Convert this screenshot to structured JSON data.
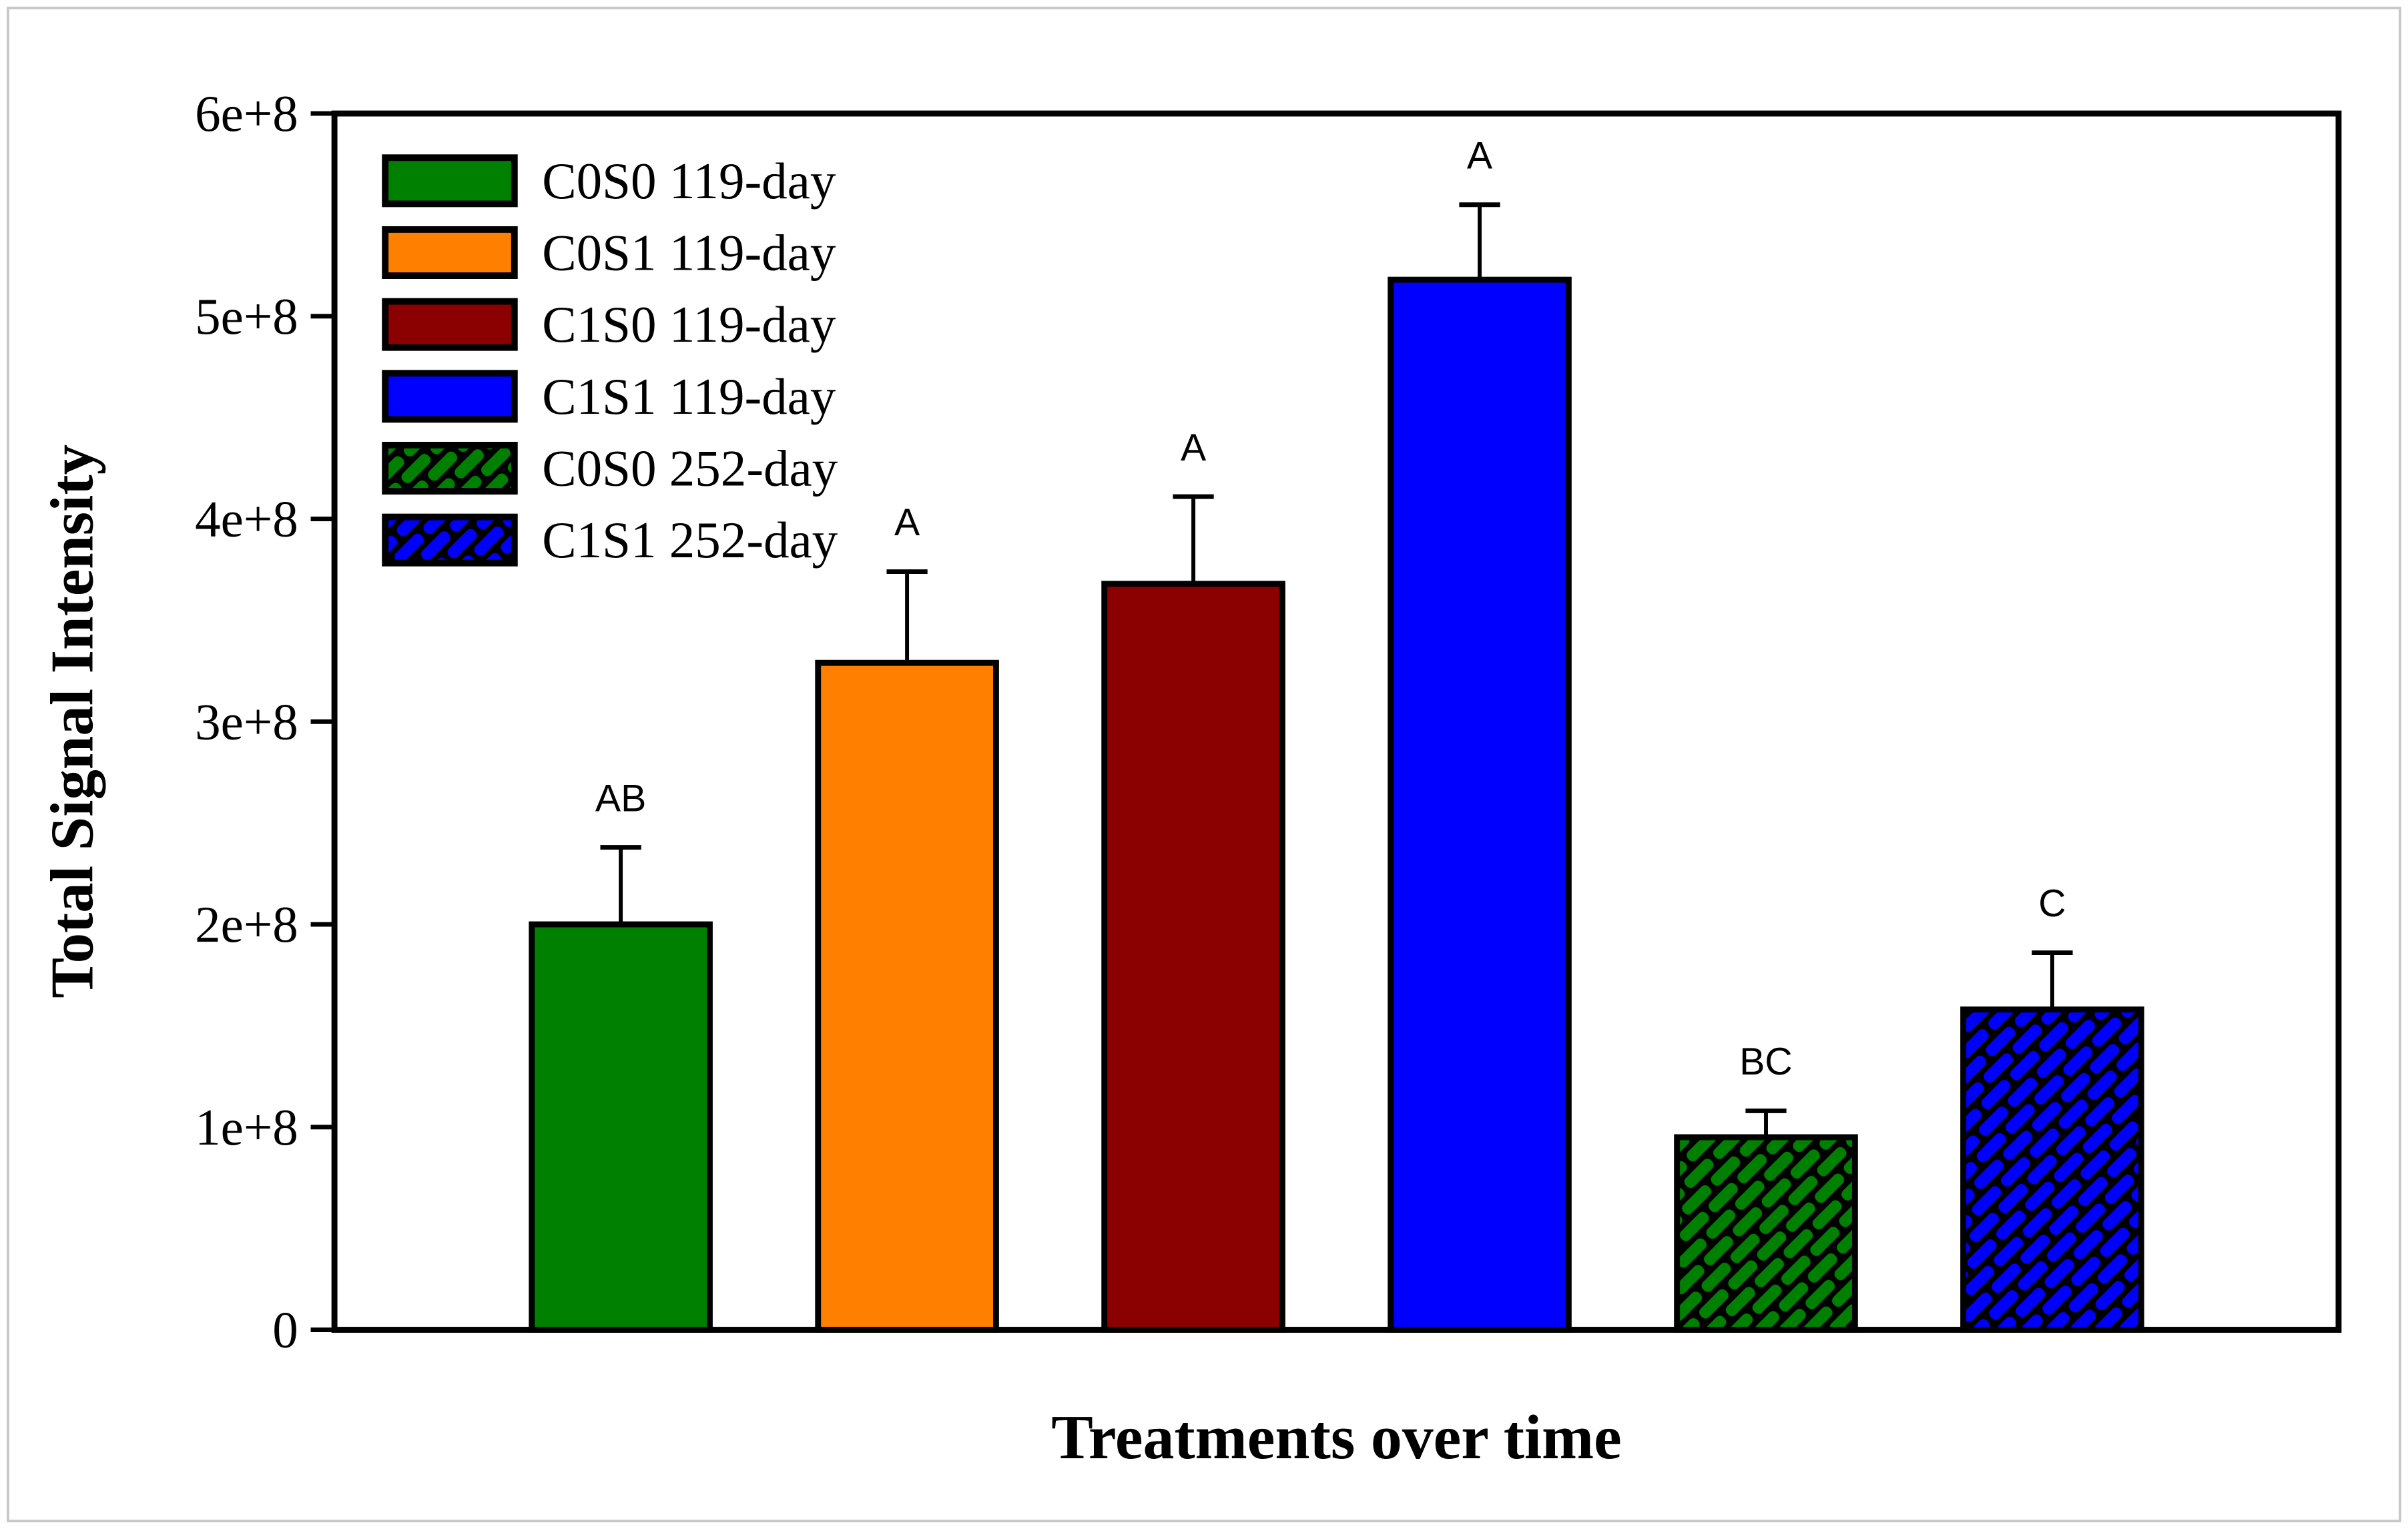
{
  "figure": {
    "background": "#FFFFFF",
    "border_color": "#C9C9C9",
    "frame_color": "#000000"
  },
  "chart_data": {
    "type": "bar",
    "title": "",
    "xlabel": "Treatments over time",
    "ylabel": "Total Signal Intensity",
    "ylim": [
      0,
      600000000
    ],
    "grid": false,
    "legend_position": "upper-left-inside",
    "yticks": [
      {
        "value": 0,
        "label": "0"
      },
      {
        "value": 100000000,
        "label": "1e+8"
      },
      {
        "value": 200000000,
        "label": "2e+8"
      },
      {
        "value": 300000000,
        "label": "3e+8"
      },
      {
        "value": 400000000,
        "label": "4e+8"
      },
      {
        "value": 500000000,
        "label": "5e+8"
      },
      {
        "value": 600000000,
        "label": "6e+8"
      }
    ],
    "bars": [
      {
        "label": "C0S0 119-day",
        "value": 200000000,
        "error_up": 38000000,
        "sig_letter": "AB",
        "color": "#008000",
        "hatch": false
      },
      {
        "label": "C0S1 119-day",
        "value": 329000000,
        "error_up": 45000000,
        "sig_letter": "A",
        "color": "#FF8000",
        "hatch": false
      },
      {
        "label": "C1S0 119-day",
        "value": 368000000,
        "error_up": 43000000,
        "sig_letter": "A",
        "color": "#8B0000",
        "hatch": false
      },
      {
        "label": "C1S1 119-day",
        "value": 518000000,
        "error_up": 37000000,
        "sig_letter": "A",
        "color": "#0000FF",
        "hatch": false
      },
      {
        "label": "C0S0 252-day",
        "value": 95000000,
        "error_up": 13000000,
        "sig_letter": "BC",
        "color": "#008000",
        "hatch": true
      },
      {
        "label": "C1S1 252-day",
        "value": 158000000,
        "error_up": 28000000,
        "sig_letter": "C",
        "color": "#0000FF",
        "hatch": true
      }
    ]
  }
}
